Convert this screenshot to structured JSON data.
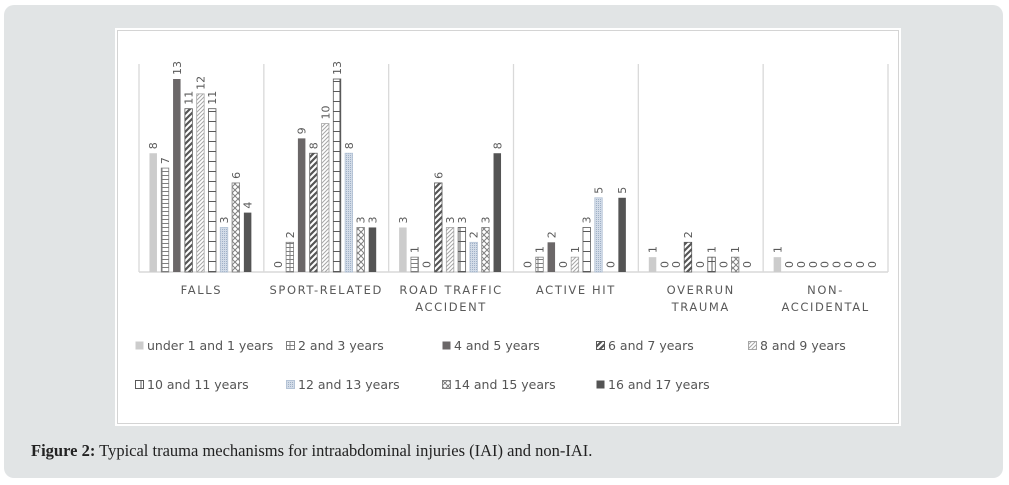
{
  "caption": {
    "label": "Figure 2:",
    "text": " Typical trauma mechanisms for intraabdominal injuries (IAI) and non-IAI."
  },
  "chart_data": {
    "type": "bar",
    "title": "",
    "xlabel": "",
    "ylabel": "",
    "ylim": [
      0,
      13
    ],
    "grid": false,
    "legend_position": "bottom",
    "categories": [
      "FALLS",
      "SPORT-RELATED",
      "ROAD TRAFFIC ACCIDENT",
      "ACTIVE HIT",
      "OVERRUN TRAUMA",
      "NON-ACCIDENTAL"
    ],
    "category_lines": [
      [
        "FALLS"
      ],
      [
        "SPORT-RELATED"
      ],
      [
        "ROAD TRAFFIC",
        "ACCIDENT"
      ],
      [
        "ACTIVE HIT"
      ],
      [
        "OVERRUN",
        "TRAUMA"
      ],
      [
        "NON-",
        "ACCIDENTAL"
      ]
    ],
    "series": [
      {
        "name": "under 1 and 1 years",
        "pattern": "solid-light",
        "color": "#cccccc",
        "values": [
          8,
          0,
          3,
          0,
          1,
          1
        ]
      },
      {
        "name": "2 and 3 years",
        "pattern": "horizontal-lines",
        "color": "#7f7f7f",
        "values": [
          7,
          2,
          1,
          1,
          0,
          0
        ]
      },
      {
        "name": "4 and 5 years",
        "pattern": "solid-dark",
        "color": "#6b6768",
        "values": [
          13,
          9,
          0,
          2,
          0,
          0
        ]
      },
      {
        "name": "6 and 7 years",
        "pattern": "wide-diagonal",
        "color": "#595959",
        "values": [
          11,
          8,
          6,
          0,
          2,
          0
        ]
      },
      {
        "name": "8 and 9 years",
        "pattern": "light-diagonal",
        "color": "#a6a6a6",
        "values": [
          12,
          10,
          3,
          1,
          0,
          0
        ]
      },
      {
        "name": "10 and 11 years",
        "pattern": "grid",
        "color": "#595959",
        "values": [
          11,
          13,
          3,
          3,
          1,
          0
        ]
      },
      {
        "name": "12 and 13 years",
        "pattern": "dotted",
        "color": "#b4c3d6",
        "values": [
          3,
          8,
          2,
          5,
          0,
          0
        ]
      },
      {
        "name": "14 and 15 years",
        "pattern": "cross-hatch",
        "color": "#808080",
        "values": [
          6,
          3,
          3,
          0,
          1,
          0
        ]
      },
      {
        "name": "16 and 17 years",
        "pattern": "solid-darkest",
        "color": "#545454",
        "values": [
          4,
          3,
          8,
          5,
          0,
          0
        ]
      }
    ]
  }
}
